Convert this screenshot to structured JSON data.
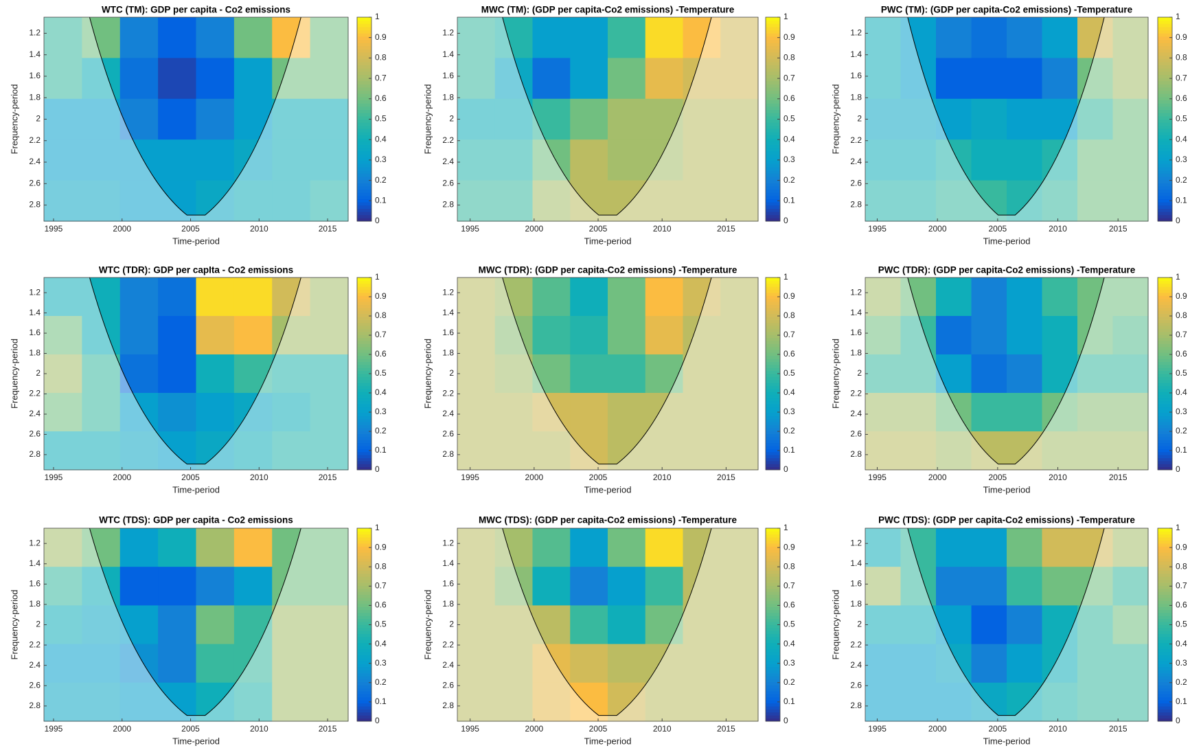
{
  "chart_data": [
    {
      "type": "heatmap",
      "title": "WTC (TM): GDP per capita - Co2 emissions",
      "xlabel": "Time-period",
      "ylabel": "Frequency-period",
      "xlim": [
        1994.3,
        2016.5
      ],
      "xticks": [
        1995,
        2000,
        2005,
        2010,
        2015
      ],
      "ylim": [
        1.05,
        2.95
      ],
      "yticks": [
        1.2,
        1.4,
        1.6,
        1.8,
        2,
        2.2,
        2.4,
        2.6,
        2.8
      ],
      "clim": [
        0,
        1
      ],
      "cticks": [
        0,
        0.1,
        0.2,
        0.3,
        0.4,
        0.5,
        0.6,
        0.7,
        0.8,
        0.9,
        1
      ],
      "colormap": "parula",
      "z": [
        [
          0.5,
          0.6,
          0.2,
          0.1,
          0.2,
          0.6,
          0.9,
          0.6
        ],
        [
          0.5,
          0.4,
          0.15,
          0.05,
          0.1,
          0.3,
          0.6,
          0.6
        ],
        [
          0.3,
          0.3,
          0.2,
          0.1,
          0.2,
          0.3,
          0.4,
          0.4
        ],
        [
          0.3,
          0.3,
          0.3,
          0.3,
          0.3,
          0.35,
          0.4,
          0.4
        ],
        [
          0.35,
          0.35,
          0.3,
          0.3,
          0.35,
          0.4,
          0.4,
          0.45
        ]
      ]
    },
    {
      "type": "heatmap",
      "title": "MWC (TM): (GDP per capita-Co2 emissions) -Temperature",
      "xlabel": "Time-period",
      "ylabel": "Frequency-period",
      "xlim": [
        1994,
        2017.5
      ],
      "xticks": [
        1995,
        2000,
        2005,
        2010,
        2015
      ],
      "ylim": [
        1.05,
        2.95
      ],
      "yticks": [
        1.2,
        1.4,
        1.6,
        1.8,
        2,
        2.2,
        2.4,
        2.6,
        2.8
      ],
      "clim": [
        0,
        1
      ],
      "cticks": [
        0,
        0.1,
        0.2,
        0.3,
        0.4,
        0.5,
        0.6,
        0.7,
        0.8,
        0.9,
        1
      ],
      "colormap": "parula",
      "z": [
        [
          0.5,
          0.45,
          0.3,
          0.3,
          0.5,
          0.95,
          0.9,
          0.8
        ],
        [
          0.5,
          0.35,
          0.15,
          0.3,
          0.6,
          0.85,
          0.8,
          0.8
        ],
        [
          0.4,
          0.4,
          0.5,
          0.6,
          0.7,
          0.7,
          0.75,
          0.75
        ],
        [
          0.45,
          0.45,
          0.6,
          0.75,
          0.7,
          0.7,
          0.75,
          0.75
        ],
        [
          0.5,
          0.5,
          0.7,
          0.75,
          0.75,
          0.75,
          0.75,
          0.75
        ]
      ]
    },
    {
      "type": "heatmap",
      "title": "PWC (TM): (GDP per capita-Co2 emissions) -Temperature",
      "xlabel": "Time-period",
      "ylabel": "Frequency-period",
      "xlim": [
        1994,
        2017.5
      ],
      "xticks": [
        1995,
        2000,
        2005,
        2010,
        2015
      ],
      "ylim": [
        1.05,
        2.95
      ],
      "yticks": [
        1.2,
        1.4,
        1.6,
        1.8,
        2,
        2.2,
        2.4,
        2.6,
        2.8
      ],
      "clim": [
        0,
        1
      ],
      "cticks": [
        0,
        0.1,
        0.2,
        0.3,
        0.4,
        0.5,
        0.6,
        0.7,
        0.8,
        0.9,
        1
      ],
      "colormap": "parula",
      "z": [
        [
          0.4,
          0.3,
          0.2,
          0.15,
          0.2,
          0.3,
          0.8,
          0.7
        ],
        [
          0.4,
          0.3,
          0.1,
          0.1,
          0.1,
          0.2,
          0.6,
          0.7
        ],
        [
          0.35,
          0.35,
          0.3,
          0.35,
          0.3,
          0.3,
          0.5,
          0.6
        ],
        [
          0.4,
          0.4,
          0.45,
          0.4,
          0.4,
          0.45,
          0.6,
          0.6
        ],
        [
          0.45,
          0.45,
          0.5,
          0.5,
          0.45,
          0.5,
          0.6,
          0.6
        ]
      ]
    },
    {
      "type": "heatmap",
      "title": "WTC (TDR): GDP per capIta - Co2 emissions",
      "xlabel": "Time-period",
      "ylabel": "Frequency-period",
      "xlim": [
        1994.3,
        2016.5
      ],
      "xticks": [
        1995,
        2000,
        2005,
        2010,
        2015
      ],
      "ylim": [
        1.05,
        2.95
      ],
      "yticks": [
        1.2,
        1.4,
        1.6,
        1.8,
        2,
        2.2,
        2.4,
        2.6,
        2.8
      ],
      "clim": [
        0,
        1
      ],
      "cticks": [
        0,
        0.1,
        0.2,
        0.3,
        0.4,
        0.5,
        0.6,
        0.7,
        0.8,
        0.9,
        1
      ],
      "colormap": "parula",
      "z": [
        [
          0.4,
          0.4,
          0.2,
          0.15,
          0.95,
          0.95,
          0.8,
          0.7
        ],
        [
          0.6,
          0.4,
          0.2,
          0.1,
          0.85,
          0.9,
          0.7,
          0.7
        ],
        [
          0.7,
          0.5,
          0.15,
          0.1,
          0.4,
          0.5,
          0.45,
          0.45
        ],
        [
          0.6,
          0.5,
          0.3,
          0.25,
          0.3,
          0.35,
          0.4,
          0.45
        ],
        [
          0.4,
          0.4,
          0.35,
          0.3,
          0.35,
          0.4,
          0.45,
          0.45
        ]
      ]
    },
    {
      "type": "heatmap",
      "title": "MWC (TDR): (GDP per capita-Co2 emissions) -Temperature",
      "xlabel": "Time-period",
      "ylabel": "Frequency-period",
      "xlim": [
        1994,
        2017.5
      ],
      "xticks": [
        1995,
        2000,
        2005,
        2010,
        2015
      ],
      "ylim": [
        1.05,
        2.95
      ],
      "yticks": [
        1.2,
        1.4,
        1.6,
        1.8,
        2,
        2.2,
        2.4,
        2.6,
        2.8
      ],
      "clim": [
        0,
        1
      ],
      "cticks": [
        0,
        0.1,
        0.2,
        0.3,
        0.4,
        0.5,
        0.6,
        0.7,
        0.8,
        0.9,
        1
      ],
      "colormap": "parula",
      "z": [
        [
          0.75,
          0.7,
          0.55,
          0.4,
          0.6,
          0.9,
          0.8,
          0.75
        ],
        [
          0.75,
          0.65,
          0.5,
          0.45,
          0.6,
          0.85,
          0.75,
          0.75
        ],
        [
          0.75,
          0.7,
          0.6,
          0.5,
          0.5,
          0.6,
          0.75,
          0.75
        ],
        [
          0.75,
          0.75,
          0.8,
          0.8,
          0.75,
          0.75,
          0.75,
          0.75
        ],
        [
          0.75,
          0.75,
          0.75,
          0.8,
          0.75,
          0.75,
          0.75,
          0.75
        ]
      ]
    },
    {
      "type": "heatmap",
      "title": "PWC (TDR): (GDP per capita-Co2 emissions) -Temperature",
      "xlabel": "Time-period",
      "ylabel": "Frequency-period",
      "xlim": [
        1994,
        2017.5
      ],
      "xticks": [
        1995,
        2000,
        2005,
        2010,
        2015
      ],
      "ylim": [
        1.05,
        2.95
      ],
      "yticks": [
        1.2,
        1.4,
        1.6,
        1.8,
        2,
        2.2,
        2.4,
        2.6,
        2.8
      ],
      "clim": [
        0,
        1
      ],
      "cticks": [
        0,
        0.1,
        0.2,
        0.3,
        0.4,
        0.5,
        0.6,
        0.7,
        0.8,
        0.9,
        1
      ],
      "colormap": "parula",
      "z": [
        [
          0.7,
          0.6,
          0.4,
          0.2,
          0.3,
          0.5,
          0.6,
          0.6
        ],
        [
          0.6,
          0.5,
          0.15,
          0.2,
          0.3,
          0.4,
          0.6,
          0.55
        ],
        [
          0.5,
          0.5,
          0.3,
          0.15,
          0.2,
          0.4,
          0.5,
          0.5
        ],
        [
          0.7,
          0.7,
          0.6,
          0.5,
          0.5,
          0.6,
          0.65,
          0.65
        ],
        [
          0.75,
          0.75,
          0.7,
          0.75,
          0.75,
          0.7,
          0.7,
          0.7
        ]
      ]
    },
    {
      "type": "heatmap",
      "title": "WTC (TDS): GDP per capita - Co2 emissions",
      "xlabel": "Time-period",
      "ylabel": "Frequency-period",
      "xlim": [
        1994.3,
        2016.5
      ],
      "xticks": [
        1995,
        2000,
        2005,
        2010,
        2015
      ],
      "ylim": [
        1.05,
        2.95
      ],
      "yticks": [
        1.2,
        1.4,
        1.6,
        1.8,
        2,
        2.2,
        2.4,
        2.6,
        2.8
      ],
      "clim": [
        0,
        1
      ],
      "cticks": [
        0,
        0.1,
        0.2,
        0.3,
        0.4,
        0.5,
        0.6,
        0.7,
        0.8,
        0.9,
        1
      ],
      "colormap": "parula",
      "z": [
        [
          0.7,
          0.6,
          0.3,
          0.4,
          0.7,
          0.9,
          0.6,
          0.6
        ],
        [
          0.5,
          0.4,
          0.1,
          0.1,
          0.2,
          0.3,
          0.6,
          0.6
        ],
        [
          0.4,
          0.35,
          0.3,
          0.2,
          0.6,
          0.5,
          0.7,
          0.7
        ],
        [
          0.3,
          0.3,
          0.25,
          0.2,
          0.5,
          0.5,
          0.7,
          0.7
        ],
        [
          0.35,
          0.35,
          0.3,
          0.3,
          0.4,
          0.45,
          0.7,
          0.7
        ]
      ]
    },
    {
      "type": "heatmap",
      "title": "MWC (TDS): (GDP per capita-Co2 emissions) -Temperature",
      "xlabel": "Time-period",
      "ylabel": "Frequency-period",
      "xlim": [
        1994,
        2017.5
      ],
      "xticks": [
        1995,
        2000,
        2005,
        2010,
        2015
      ],
      "ylim": [
        1.05,
        2.95
      ],
      "yticks": [
        1.2,
        1.4,
        1.6,
        1.8,
        2,
        2.2,
        2.4,
        2.6,
        2.8
      ],
      "clim": [
        0,
        1
      ],
      "cticks": [
        0,
        0.1,
        0.2,
        0.3,
        0.4,
        0.5,
        0.6,
        0.7,
        0.8,
        0.9,
        1
      ],
      "colormap": "parula",
      "z": [
        [
          0.75,
          0.7,
          0.55,
          0.3,
          0.6,
          0.95,
          0.75,
          0.75
        ],
        [
          0.75,
          0.65,
          0.4,
          0.2,
          0.3,
          0.5,
          0.75,
          0.75
        ],
        [
          0.75,
          0.75,
          0.75,
          0.5,
          0.4,
          0.6,
          0.75,
          0.75
        ],
        [
          0.75,
          0.75,
          0.85,
          0.8,
          0.75,
          0.75,
          0.75,
          0.75
        ],
        [
          0.75,
          0.75,
          0.85,
          0.9,
          0.8,
          0.75,
          0.75,
          0.75
        ]
      ]
    },
    {
      "type": "heatmap",
      "title": "PWC (TDS): (GDP per capita-Co2 emissions) -Temperature",
      "xlabel": "Time-period",
      "ylabel": "Frequency-period",
      "xlim": [
        1994,
        2017.5
      ],
      "xticks": [
        1995,
        2000,
        2005,
        2010,
        2015
      ],
      "ylim": [
        1.05,
        2.95
      ],
      "yticks": [
        1.2,
        1.4,
        1.6,
        1.8,
        2,
        2.2,
        2.4,
        2.6,
        2.8
      ],
      "clim": [
        0,
        1
      ],
      "cticks": [
        0,
        0.1,
        0.2,
        0.3,
        0.4,
        0.5,
        0.6,
        0.7,
        0.8,
        0.9,
        1
      ],
      "colormap": "parula",
      "z": [
        [
          0.4,
          0.5,
          0.3,
          0.3,
          0.6,
          0.8,
          0.8,
          0.7
        ],
        [
          0.7,
          0.5,
          0.2,
          0.2,
          0.5,
          0.6,
          0.6,
          0.5
        ],
        [
          0.4,
          0.4,
          0.3,
          0.1,
          0.2,
          0.4,
          0.5,
          0.6
        ],
        [
          0.3,
          0.3,
          0.35,
          0.2,
          0.3,
          0.4,
          0.5,
          0.5
        ],
        [
          0.3,
          0.3,
          0.3,
          0.35,
          0.4,
          0.45,
          0.5,
          0.5
        ]
      ]
    }
  ]
}
